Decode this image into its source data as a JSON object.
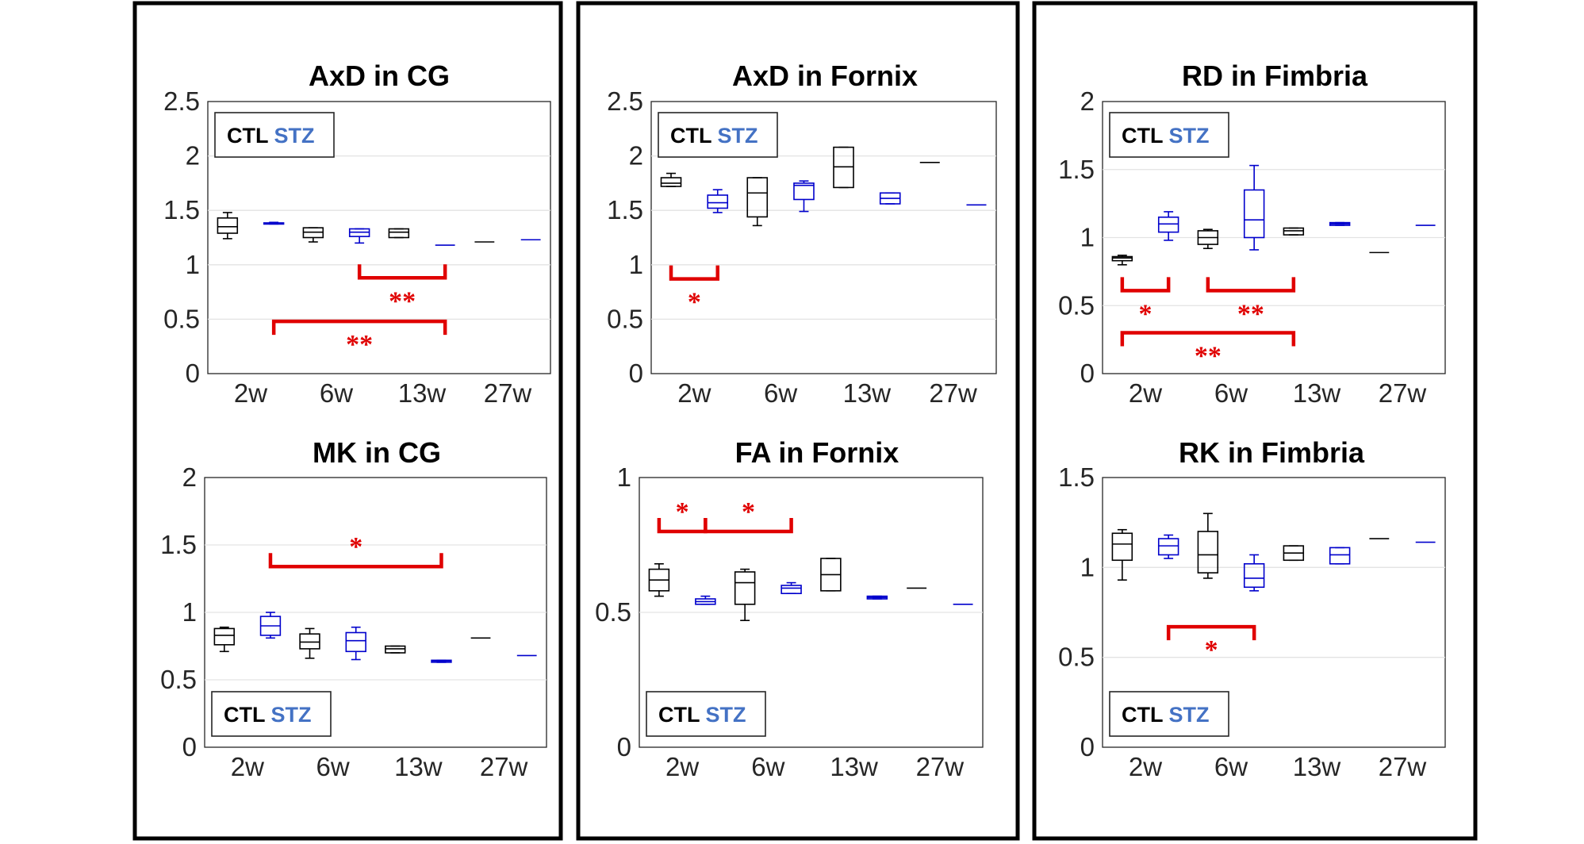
{
  "colors": {
    "ctl": "#000000",
    "stz": "#0000cc",
    "stz_legend": "#4472c4",
    "significance": "#e00000"
  },
  "legend": {
    "ctl_label": "CTL",
    "stz_label": "STZ"
  },
  "chart_data": [
    {
      "type": "box",
      "title": "AxD in CG",
      "categories": [
        "2w",
        "6w",
        "13w",
        "27w"
      ],
      "ylim": [
        0,
        2.5
      ],
      "yticks": [
        0,
        0.5,
        1,
        1.5,
        2,
        2.5
      ],
      "ytick_labels": [
        "0",
        "0.5",
        "1",
        "1.5",
        "2",
        "2.5"
      ],
      "legend_position": "top-left",
      "boxes": [
        {
          "group": "CTL",
          "time": "2w",
          "whisker_low": 1.24,
          "q1": 1.29,
          "median": 1.35,
          "q3": 1.43,
          "whisker_high": 1.48
        },
        {
          "group": "STZ",
          "time": "2w",
          "whisker_low": 1.375,
          "q1": 1.375,
          "median": 1.38,
          "q3": 1.385,
          "whisker_high": 1.39
        },
        {
          "group": "CTL",
          "time": "6w",
          "whisker_low": 1.21,
          "q1": 1.25,
          "median": 1.3,
          "q3": 1.34,
          "whisker_high": 1.34
        },
        {
          "group": "STZ",
          "time": "6w",
          "whisker_low": 1.2,
          "q1": 1.26,
          "median": 1.3,
          "q3": 1.33,
          "whisker_high": 1.33
        },
        {
          "group": "CTL",
          "time": "13w",
          "whisker_low": 1.25,
          "q1": 1.25,
          "median": 1.3,
          "q3": 1.33,
          "whisker_high": 1.33
        },
        {
          "group": "STZ",
          "time": "13w",
          "whisker_low": 1.18,
          "q1": 1.18,
          "median": 1.18,
          "q3": 1.18,
          "whisker_high": 1.18
        },
        {
          "group": "CTL",
          "time": "27w",
          "whisker_low": 1.21,
          "q1": 1.21,
          "median": 1.21,
          "q3": 1.21,
          "whisker_high": 1.21
        },
        {
          "group": "STZ",
          "time": "27w",
          "whisker_low": 1.23,
          "q1": 1.23,
          "median": 1.23,
          "q3": 1.23,
          "whisker_high": 1.23
        }
      ],
      "significance": [
        {
          "from": "6w STZ",
          "to": "13w STZ",
          "y": 0.88,
          "direction": "down",
          "label": "**",
          "label_pos": "below"
        },
        {
          "from": "2w STZ",
          "to": "13w STZ",
          "y": 0.48,
          "direction": "up",
          "label": "**",
          "label_pos": "below"
        }
      ]
    },
    {
      "type": "box",
      "title": "AxD in Fornix",
      "categories": [
        "2w",
        "6w",
        "13w",
        "27w"
      ],
      "ylim": [
        0,
        2.5
      ],
      "yticks": [
        0,
        0.5,
        1,
        1.5,
        2,
        2.5
      ],
      "ytick_labels": [
        "0",
        "0.5",
        "1",
        "1.5",
        "2",
        "2.5"
      ],
      "legend_position": "top-left",
      "boxes": [
        {
          "group": "CTL",
          "time": "2w",
          "whisker_low": 1.72,
          "q1": 1.72,
          "median": 1.75,
          "q3": 1.8,
          "whisker_high": 1.84
        },
        {
          "group": "STZ",
          "time": "2w",
          "whisker_low": 1.48,
          "q1": 1.52,
          "median": 1.57,
          "q3": 1.64,
          "whisker_high": 1.69
        },
        {
          "group": "CTL",
          "time": "6w",
          "whisker_low": 1.36,
          "q1": 1.44,
          "median": 1.66,
          "q3": 1.8,
          "whisker_high": 1.8
        },
        {
          "group": "STZ",
          "time": "6w",
          "whisker_low": 1.49,
          "q1": 1.6,
          "median": 1.73,
          "q3": 1.75,
          "whisker_high": 1.77
        },
        {
          "group": "CTL",
          "time": "13w",
          "whisker_low": 1.71,
          "q1": 1.71,
          "median": 1.9,
          "q3": 2.08,
          "whisker_high": 2.08
        },
        {
          "group": "STZ",
          "time": "13w",
          "whisker_low": 1.56,
          "q1": 1.56,
          "median": 1.61,
          "q3": 1.66,
          "whisker_high": 1.66
        },
        {
          "group": "CTL",
          "time": "27w",
          "whisker_low": 1.94,
          "q1": 1.94,
          "median": 1.94,
          "q3": 1.94,
          "whisker_high": 1.94
        },
        {
          "group": "STZ",
          "time": "27w",
          "whisker_low": 1.55,
          "q1": 1.55,
          "median": 1.55,
          "q3": 1.55,
          "whisker_high": 1.55
        }
      ],
      "significance": [
        {
          "from": "2w CTL",
          "to": "2w STZ",
          "y": 0.87,
          "direction": "down",
          "label": "*",
          "label_pos": "below"
        }
      ]
    },
    {
      "type": "box",
      "title": "RD in Fimbria",
      "categories": [
        "2w",
        "6w",
        "13w",
        "27w"
      ],
      "ylim": [
        0,
        2
      ],
      "yticks": [
        0,
        0.5,
        1,
        1.5,
        2
      ],
      "ytick_labels": [
        "0",
        "0.5",
        "1",
        "1.5",
        "2"
      ],
      "legend_position": "top-left",
      "boxes": [
        {
          "group": "CTL",
          "time": "2w",
          "whisker_low": 0.8,
          "q1": 0.83,
          "median": 0.85,
          "q3": 0.86,
          "whisker_high": 0.87
        },
        {
          "group": "STZ",
          "time": "2w",
          "whisker_low": 0.98,
          "q1": 1.04,
          "median": 1.1,
          "q3": 1.15,
          "whisker_high": 1.19
        },
        {
          "group": "CTL",
          "time": "6w",
          "whisker_low": 0.92,
          "q1": 0.95,
          "median": 1.0,
          "q3": 1.05,
          "whisker_high": 1.06
        },
        {
          "group": "STZ",
          "time": "6w",
          "whisker_low": 0.91,
          "q1": 1.0,
          "median": 1.13,
          "q3": 1.35,
          "whisker_high": 1.53
        },
        {
          "group": "CTL",
          "time": "13w",
          "whisker_low": 1.02,
          "q1": 1.02,
          "median": 1.05,
          "q3": 1.07,
          "whisker_high": 1.07
        },
        {
          "group": "STZ",
          "time": "13w",
          "whisker_low": 1.09,
          "q1": 1.09,
          "median": 1.1,
          "q3": 1.11,
          "whisker_high": 1.11
        },
        {
          "group": "CTL",
          "time": "27w",
          "whisker_low": 0.89,
          "q1": 0.89,
          "median": 0.89,
          "q3": 0.89,
          "whisker_high": 0.89
        },
        {
          "group": "STZ",
          "time": "27w",
          "whisker_low": 1.09,
          "q1": 1.09,
          "median": 1.09,
          "q3": 1.09,
          "whisker_high": 1.09
        }
      ],
      "significance": [
        {
          "from": "2w CTL",
          "to": "2w STZ",
          "y": 0.61,
          "direction": "down",
          "label": "*",
          "label_pos": "below"
        },
        {
          "from": "6w CTL",
          "to": "13w CTL",
          "y": 0.61,
          "direction": "down",
          "label": "**",
          "label_pos": "below"
        },
        {
          "from": "2w CTL",
          "to": "13w CTL",
          "y": 0.3,
          "direction": "up",
          "label": "**",
          "label_pos": "below"
        }
      ]
    },
    {
      "type": "box",
      "title": "MK in CG",
      "categories": [
        "2w",
        "6w",
        "13w",
        "27w"
      ],
      "ylim": [
        0,
        2
      ],
      "yticks": [
        0,
        0.5,
        1,
        1.5,
        2
      ],
      "ytick_labels": [
        "0",
        "0.5",
        "1",
        "1.5",
        "2"
      ],
      "legend_position": "bottom-left",
      "boxes": [
        {
          "group": "CTL",
          "time": "2w",
          "whisker_low": 0.71,
          "q1": 0.76,
          "median": 0.83,
          "q3": 0.88,
          "whisker_high": 0.89
        },
        {
          "group": "STZ",
          "time": "2w",
          "whisker_low": 0.81,
          "q1": 0.83,
          "median": 0.9,
          "q3": 0.97,
          "whisker_high": 1.0
        },
        {
          "group": "CTL",
          "time": "6w",
          "whisker_low": 0.66,
          "q1": 0.73,
          "median": 0.78,
          "q3": 0.84,
          "whisker_high": 0.88
        },
        {
          "group": "STZ",
          "time": "6w",
          "whisker_low": 0.65,
          "q1": 0.71,
          "median": 0.79,
          "q3": 0.85,
          "whisker_high": 0.89
        },
        {
          "group": "CTL",
          "time": "13w",
          "whisker_low": 0.7,
          "q1": 0.7,
          "median": 0.73,
          "q3": 0.75,
          "whisker_high": 0.75
        },
        {
          "group": "STZ",
          "time": "13w",
          "whisker_low": 0.63,
          "q1": 0.63,
          "median": 0.64,
          "q3": 0.645,
          "whisker_high": 0.645
        },
        {
          "group": "CTL",
          "time": "27w",
          "whisker_low": 0.81,
          "q1": 0.81,
          "median": 0.81,
          "q3": 0.81,
          "whisker_high": 0.81
        },
        {
          "group": "STZ",
          "time": "27w",
          "whisker_low": 0.68,
          "q1": 0.68,
          "median": 0.68,
          "q3": 0.68,
          "whisker_high": 0.68
        }
      ],
      "significance": [
        {
          "from": "2w STZ",
          "to": "13w STZ",
          "y": 1.34,
          "direction": "down",
          "label": "*",
          "label_pos": "above"
        }
      ]
    },
    {
      "type": "box",
      "title": "FA in Fornix",
      "categories": [
        "2w",
        "6w",
        "13w",
        "27w"
      ],
      "ylim": [
        0,
        1
      ],
      "yticks": [
        0,
        0.5,
        1
      ],
      "ytick_labels": [
        "0",
        "0.5",
        "1"
      ],
      "legend_position": "bottom-left",
      "boxes": [
        {
          "group": "CTL",
          "time": "2w",
          "whisker_low": 0.56,
          "q1": 0.58,
          "median": 0.62,
          "q3": 0.66,
          "whisker_high": 0.68
        },
        {
          "group": "STZ",
          "time": "2w",
          "whisker_low": 0.53,
          "q1": 0.53,
          "median": 0.54,
          "q3": 0.55,
          "whisker_high": 0.56
        },
        {
          "group": "CTL",
          "time": "6w",
          "whisker_low": 0.47,
          "q1": 0.53,
          "median": 0.61,
          "q3": 0.65,
          "whisker_high": 0.66
        },
        {
          "group": "STZ",
          "time": "6w",
          "whisker_low": 0.57,
          "q1": 0.57,
          "median": 0.59,
          "q3": 0.6,
          "whisker_high": 0.61
        },
        {
          "group": "CTL",
          "time": "13w",
          "whisker_low": 0.58,
          "q1": 0.58,
          "median": 0.64,
          "q3": 0.7,
          "whisker_high": 0.7
        },
        {
          "group": "STZ",
          "time": "13w",
          "whisker_low": 0.55,
          "q1": 0.55,
          "median": 0.555,
          "q3": 0.56,
          "whisker_high": 0.56
        },
        {
          "group": "CTL",
          "time": "27w",
          "whisker_low": 0.59,
          "q1": 0.59,
          "median": 0.59,
          "q3": 0.59,
          "whisker_high": 0.59
        },
        {
          "group": "STZ",
          "time": "27w",
          "whisker_low": 0.53,
          "q1": 0.53,
          "median": 0.53,
          "q3": 0.53,
          "whisker_high": 0.53
        }
      ],
      "significance": [
        {
          "from": "2w CTL",
          "to": "2w STZ",
          "y": 0.8,
          "direction": "down",
          "label": "*",
          "label_pos": "above"
        },
        {
          "from": "2w STZ",
          "to": "6w STZ",
          "y": 0.8,
          "direction": "down",
          "label": "*",
          "label_pos": "above"
        }
      ]
    },
    {
      "type": "box",
      "title": "RK in Fimbria",
      "categories": [
        "2w",
        "6w",
        "13w",
        "27w"
      ],
      "ylim": [
        0,
        1.5
      ],
      "yticks": [
        0,
        0.5,
        1,
        1.5
      ],
      "ytick_labels": [
        "0",
        "0.5",
        "1",
        "1.5"
      ],
      "legend_position": "bottom-left",
      "boxes": [
        {
          "group": "CTL",
          "time": "2w",
          "whisker_low": 0.93,
          "q1": 1.04,
          "median": 1.13,
          "q3": 1.19,
          "whisker_high": 1.21
        },
        {
          "group": "STZ",
          "time": "2w",
          "whisker_low": 1.05,
          "q1": 1.07,
          "median": 1.12,
          "q3": 1.16,
          "whisker_high": 1.18
        },
        {
          "group": "CTL",
          "time": "6w",
          "whisker_low": 0.94,
          "q1": 0.97,
          "median": 1.07,
          "q3": 1.2,
          "whisker_high": 1.3
        },
        {
          "group": "STZ",
          "time": "6w",
          "whisker_low": 0.87,
          "q1": 0.89,
          "median": 0.94,
          "q3": 1.02,
          "whisker_high": 1.07
        },
        {
          "group": "CTL",
          "time": "13w",
          "whisker_low": 1.04,
          "q1": 1.04,
          "median": 1.08,
          "q3": 1.12,
          "whisker_high": 1.12
        },
        {
          "group": "STZ",
          "time": "13w",
          "whisker_low": 1.02,
          "q1": 1.02,
          "median": 1.07,
          "q3": 1.11,
          "whisker_high": 1.11
        },
        {
          "group": "CTL",
          "time": "27w",
          "whisker_low": 1.16,
          "q1": 1.16,
          "median": 1.16,
          "q3": 1.16,
          "whisker_high": 1.16
        },
        {
          "group": "STZ",
          "time": "27w",
          "whisker_low": 1.14,
          "q1": 1.14,
          "median": 1.14,
          "q3": 1.14,
          "whisker_high": 1.14
        }
      ],
      "significance": [
        {
          "from": "2w STZ",
          "to": "6w STZ",
          "y": 0.67,
          "direction": "up",
          "label": "*",
          "label_pos": "below"
        }
      ]
    }
  ]
}
